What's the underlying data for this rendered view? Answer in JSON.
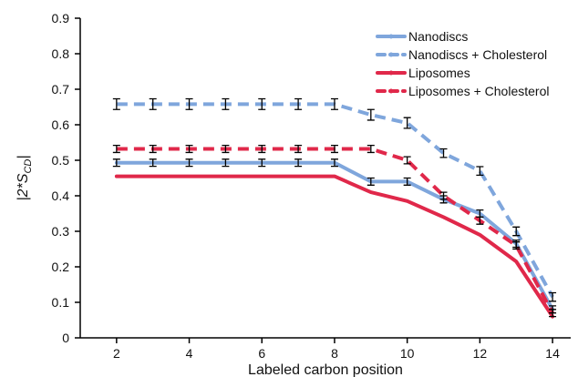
{
  "chart_data": {
    "type": "line",
    "title": "",
    "xlabel": "Labeled carbon position",
    "ylabel_parts": {
      "prefix": "|2*S",
      "subscript": "CD",
      "suffix": "|"
    },
    "xlim": [
      1,
      14.5
    ],
    "ylim": [
      0,
      0.9
    ],
    "xticks": [
      2,
      4,
      6,
      8,
      10,
      12,
      14
    ],
    "yticks": [
      0,
      0.1,
      0.2,
      0.3,
      0.4,
      0.5,
      0.6,
      0.7,
      0.8,
      0.9
    ],
    "ytick_labels": [
      "0",
      "0.1",
      "0.2",
      "0.3",
      "0.4",
      "0.5",
      "0.6",
      "0.7",
      "0.8",
      "0.9"
    ],
    "grid": false,
    "legend_position": "top-right",
    "series": [
      {
        "name": "Nanodiscs",
        "color": "#7fa6dc",
        "dashed": false,
        "x": [
          2,
          3,
          4,
          5,
          6,
          7,
          8,
          9,
          10,
          11,
          12,
          13,
          14
        ],
        "y": [
          0.493,
          0.493,
          0.493,
          0.493,
          0.493,
          0.493,
          0.493,
          0.44,
          0.44,
          0.39,
          0.35,
          0.265,
          0.08
        ],
        "err": [
          0.01,
          0.01,
          0.01,
          0.01,
          0.01,
          0.01,
          0.01,
          0.01,
          0.01,
          0.01,
          0.01,
          0.01,
          0.01
        ]
      },
      {
        "name": "Nanodiscs + Cholesterol",
        "color": "#7fa6dc",
        "dashed": true,
        "x": [
          2,
          3,
          4,
          5,
          6,
          7,
          8,
          9,
          10,
          11,
          12,
          13,
          14
        ],
        "y": [
          0.658,
          0.658,
          0.658,
          0.658,
          0.658,
          0.658,
          0.658,
          0.628,
          0.605,
          0.52,
          0.47,
          0.3,
          0.115
        ],
        "err": [
          0.015,
          0.015,
          0.015,
          0.015,
          0.015,
          0.015,
          0.015,
          0.015,
          0.015,
          0.012,
          0.012,
          0.012,
          0.012
        ]
      },
      {
        "name": "Liposomes",
        "color": "#e0284a",
        "dashed": false,
        "x": [
          2,
          3,
          4,
          5,
          6,
          7,
          8,
          9,
          10,
          11,
          12,
          13,
          14
        ],
        "y": [
          0.455,
          0.455,
          0.455,
          0.455,
          0.455,
          0.455,
          0.455,
          0.41,
          0.385,
          0.34,
          0.29,
          0.215,
          0.06
        ],
        "err": [
          0,
          0,
          0,
          0,
          0,
          0,
          0,
          0,
          0,
          0,
          0,
          0,
          0
        ]
      },
      {
        "name": "Liposomes + Cholesterol",
        "color": "#e0284a",
        "dashed": true,
        "x": [
          2,
          3,
          4,
          5,
          6,
          7,
          8,
          9,
          10,
          11,
          12,
          13,
          14
        ],
        "y": [
          0.532,
          0.532,
          0.532,
          0.532,
          0.532,
          0.532,
          0.532,
          0.532,
          0.5,
          0.4,
          0.33,
          0.26,
          0.07
        ],
        "err": [
          0.01,
          0.01,
          0.01,
          0.01,
          0.01,
          0.01,
          0.01,
          0.01,
          0.01,
          0.01,
          0.01,
          0.01,
          0.01
        ]
      }
    ]
  }
}
